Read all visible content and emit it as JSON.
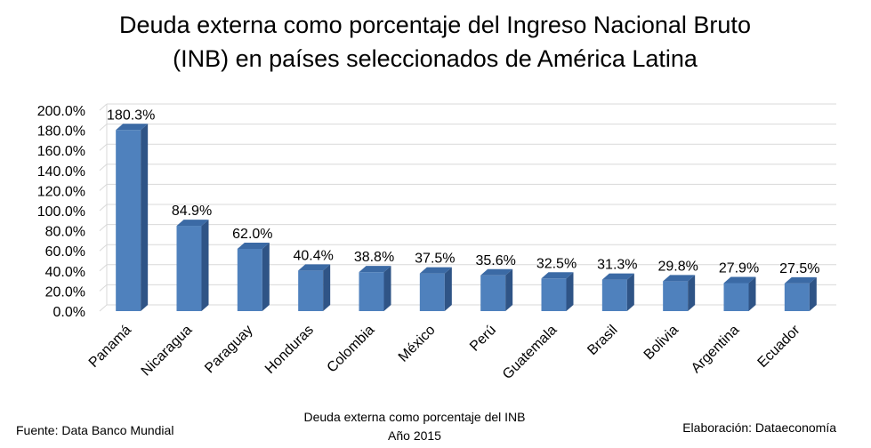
{
  "chart_data": {
    "type": "bar",
    "title_line1": "Deuda externa como porcentaje del Ingreso Nacional Bruto",
    "title_line2": "(INB) en países seleccionados de América Latina",
    "categories": [
      "Panamá",
      "Nicaragua",
      "Paraguay",
      "Honduras",
      "Colombia",
      "México",
      "Perú",
      "Guatemala",
      "Brasil",
      "Bolivia",
      "Argentina",
      "Ecuador"
    ],
    "values": [
      180.3,
      84.9,
      62.0,
      40.4,
      38.8,
      37.5,
      35.6,
      32.5,
      31.3,
      29.8,
      27.9,
      27.5
    ],
    "data_labels": [
      "180.3%",
      "84.9%",
      "62.0%",
      "40.4%",
      "38.8%",
      "37.5%",
      "35.6%",
      "32.5%",
      "31.3%",
      "29.8%",
      "27.9%",
      "27.5%"
    ],
    "y_ticks": [
      0,
      20,
      40,
      60,
      80,
      100,
      120,
      140,
      160,
      180,
      200
    ],
    "y_tick_labels": [
      "0.0%",
      "20.0%",
      "40.0%",
      "60.0%",
      "80.0%",
      "100.0%",
      "120.0%",
      "140.0%",
      "160.0%",
      "180.0%",
      "200.0%"
    ],
    "ylim": [
      0,
      200
    ],
    "grid": true,
    "bar_color": "#4f81bd",
    "bar_side_color": "#2f5486",
    "bar_top_color": "#3b6aa5"
  },
  "footer": {
    "source": "Fuente: Data Banco Mundial",
    "caption_line1": "Deuda externa como porcentaje del INB",
    "caption_line2": "Año 2015",
    "credit": "Elaboración: Dataeconomía"
  }
}
